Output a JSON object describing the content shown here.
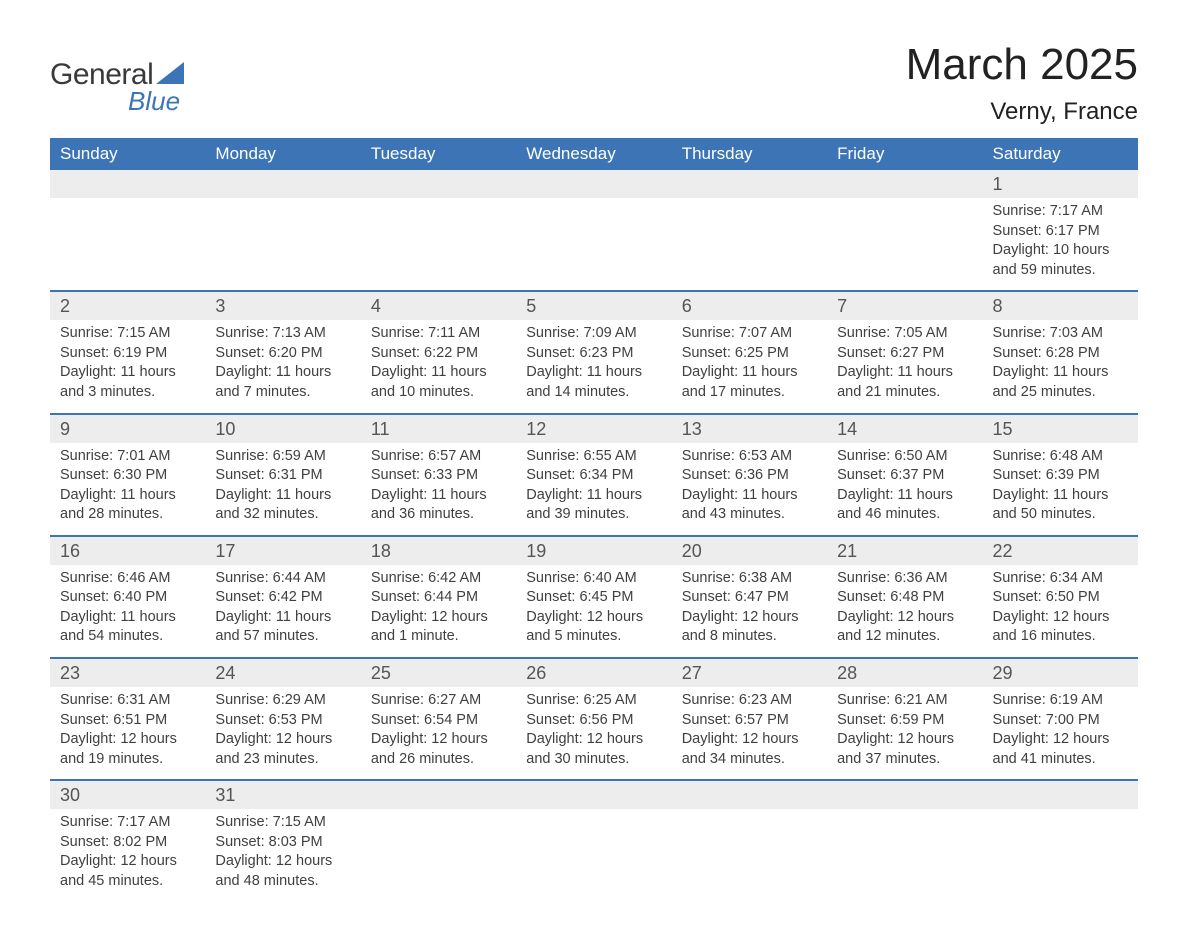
{
  "logo": {
    "text1": "General",
    "text2": "Blue",
    "accent_color": "#3d74b5",
    "text_color": "#3a3a3a"
  },
  "title": "March 2025",
  "location": "Verny, France",
  "colors": {
    "header_bg": "#3d74b5",
    "header_text": "#ffffff",
    "row_divider": "#3d74b5",
    "daynum_bg": "#ededed",
    "body_text": "#404040",
    "background": "#ffffff"
  },
  "fonts": {
    "title_size": 44,
    "location_size": 24,
    "weekday_size": 17,
    "daynum_size": 18,
    "detail_size": 14.5
  },
  "layout": {
    "columns": 7,
    "rows": 6,
    "start_weekday": "Sunday"
  },
  "weekdays": [
    "Sunday",
    "Monday",
    "Tuesday",
    "Wednesday",
    "Thursday",
    "Friday",
    "Saturday"
  ],
  "weeks": [
    [
      {
        "day": "",
        "sunrise": "",
        "sunset": "",
        "daylight": ""
      },
      {
        "day": "",
        "sunrise": "",
        "sunset": "",
        "daylight": ""
      },
      {
        "day": "",
        "sunrise": "",
        "sunset": "",
        "daylight": ""
      },
      {
        "day": "",
        "sunrise": "",
        "sunset": "",
        "daylight": ""
      },
      {
        "day": "",
        "sunrise": "",
        "sunset": "",
        "daylight": ""
      },
      {
        "day": "",
        "sunrise": "",
        "sunset": "",
        "daylight": ""
      },
      {
        "day": "1",
        "sunrise": "Sunrise: 7:17 AM",
        "sunset": "Sunset: 6:17 PM",
        "daylight": "Daylight: 10 hours and 59 minutes."
      }
    ],
    [
      {
        "day": "2",
        "sunrise": "Sunrise: 7:15 AM",
        "sunset": "Sunset: 6:19 PM",
        "daylight": "Daylight: 11 hours and 3 minutes."
      },
      {
        "day": "3",
        "sunrise": "Sunrise: 7:13 AM",
        "sunset": "Sunset: 6:20 PM",
        "daylight": "Daylight: 11 hours and 7 minutes."
      },
      {
        "day": "4",
        "sunrise": "Sunrise: 7:11 AM",
        "sunset": "Sunset: 6:22 PM",
        "daylight": "Daylight: 11 hours and 10 minutes."
      },
      {
        "day": "5",
        "sunrise": "Sunrise: 7:09 AM",
        "sunset": "Sunset: 6:23 PM",
        "daylight": "Daylight: 11 hours and 14 minutes."
      },
      {
        "day": "6",
        "sunrise": "Sunrise: 7:07 AM",
        "sunset": "Sunset: 6:25 PM",
        "daylight": "Daylight: 11 hours and 17 minutes."
      },
      {
        "day": "7",
        "sunrise": "Sunrise: 7:05 AM",
        "sunset": "Sunset: 6:27 PM",
        "daylight": "Daylight: 11 hours and 21 minutes."
      },
      {
        "day": "8",
        "sunrise": "Sunrise: 7:03 AM",
        "sunset": "Sunset: 6:28 PM",
        "daylight": "Daylight: 11 hours and 25 minutes."
      }
    ],
    [
      {
        "day": "9",
        "sunrise": "Sunrise: 7:01 AM",
        "sunset": "Sunset: 6:30 PM",
        "daylight": "Daylight: 11 hours and 28 minutes."
      },
      {
        "day": "10",
        "sunrise": "Sunrise: 6:59 AM",
        "sunset": "Sunset: 6:31 PM",
        "daylight": "Daylight: 11 hours and 32 minutes."
      },
      {
        "day": "11",
        "sunrise": "Sunrise: 6:57 AM",
        "sunset": "Sunset: 6:33 PM",
        "daylight": "Daylight: 11 hours and 36 minutes."
      },
      {
        "day": "12",
        "sunrise": "Sunrise: 6:55 AM",
        "sunset": "Sunset: 6:34 PM",
        "daylight": "Daylight: 11 hours and 39 minutes."
      },
      {
        "day": "13",
        "sunrise": "Sunrise: 6:53 AM",
        "sunset": "Sunset: 6:36 PM",
        "daylight": "Daylight: 11 hours and 43 minutes."
      },
      {
        "day": "14",
        "sunrise": "Sunrise: 6:50 AM",
        "sunset": "Sunset: 6:37 PM",
        "daylight": "Daylight: 11 hours and 46 minutes."
      },
      {
        "day": "15",
        "sunrise": "Sunrise: 6:48 AM",
        "sunset": "Sunset: 6:39 PM",
        "daylight": "Daylight: 11 hours and 50 minutes."
      }
    ],
    [
      {
        "day": "16",
        "sunrise": "Sunrise: 6:46 AM",
        "sunset": "Sunset: 6:40 PM",
        "daylight": "Daylight: 11 hours and 54 minutes."
      },
      {
        "day": "17",
        "sunrise": "Sunrise: 6:44 AM",
        "sunset": "Sunset: 6:42 PM",
        "daylight": "Daylight: 11 hours and 57 minutes."
      },
      {
        "day": "18",
        "sunrise": "Sunrise: 6:42 AM",
        "sunset": "Sunset: 6:44 PM",
        "daylight": "Daylight: 12 hours and 1 minute."
      },
      {
        "day": "19",
        "sunrise": "Sunrise: 6:40 AM",
        "sunset": "Sunset: 6:45 PM",
        "daylight": "Daylight: 12 hours and 5 minutes."
      },
      {
        "day": "20",
        "sunrise": "Sunrise: 6:38 AM",
        "sunset": "Sunset: 6:47 PM",
        "daylight": "Daylight: 12 hours and 8 minutes."
      },
      {
        "day": "21",
        "sunrise": "Sunrise: 6:36 AM",
        "sunset": "Sunset: 6:48 PM",
        "daylight": "Daylight: 12 hours and 12 minutes."
      },
      {
        "day": "22",
        "sunrise": "Sunrise: 6:34 AM",
        "sunset": "Sunset: 6:50 PM",
        "daylight": "Daylight: 12 hours and 16 minutes."
      }
    ],
    [
      {
        "day": "23",
        "sunrise": "Sunrise: 6:31 AM",
        "sunset": "Sunset: 6:51 PM",
        "daylight": "Daylight: 12 hours and 19 minutes."
      },
      {
        "day": "24",
        "sunrise": "Sunrise: 6:29 AM",
        "sunset": "Sunset: 6:53 PM",
        "daylight": "Daylight: 12 hours and 23 minutes."
      },
      {
        "day": "25",
        "sunrise": "Sunrise: 6:27 AM",
        "sunset": "Sunset: 6:54 PM",
        "daylight": "Daylight: 12 hours and 26 minutes."
      },
      {
        "day": "26",
        "sunrise": "Sunrise: 6:25 AM",
        "sunset": "Sunset: 6:56 PM",
        "daylight": "Daylight: 12 hours and 30 minutes."
      },
      {
        "day": "27",
        "sunrise": "Sunrise: 6:23 AM",
        "sunset": "Sunset: 6:57 PM",
        "daylight": "Daylight: 12 hours and 34 minutes."
      },
      {
        "day": "28",
        "sunrise": "Sunrise: 6:21 AM",
        "sunset": "Sunset: 6:59 PM",
        "daylight": "Daylight: 12 hours and 37 minutes."
      },
      {
        "day": "29",
        "sunrise": "Sunrise: 6:19 AM",
        "sunset": "Sunset: 7:00 PM",
        "daylight": "Daylight: 12 hours and 41 minutes."
      }
    ],
    [
      {
        "day": "30",
        "sunrise": "Sunrise: 7:17 AM",
        "sunset": "Sunset: 8:02 PM",
        "daylight": "Daylight: 12 hours and 45 minutes."
      },
      {
        "day": "31",
        "sunrise": "Sunrise: 7:15 AM",
        "sunset": "Sunset: 8:03 PM",
        "daylight": "Daylight: 12 hours and 48 minutes."
      },
      {
        "day": "",
        "sunrise": "",
        "sunset": "",
        "daylight": ""
      },
      {
        "day": "",
        "sunrise": "",
        "sunset": "",
        "daylight": ""
      },
      {
        "day": "",
        "sunrise": "",
        "sunset": "",
        "daylight": ""
      },
      {
        "day": "",
        "sunrise": "",
        "sunset": "",
        "daylight": ""
      },
      {
        "day": "",
        "sunrise": "",
        "sunset": "",
        "daylight": ""
      }
    ]
  ]
}
